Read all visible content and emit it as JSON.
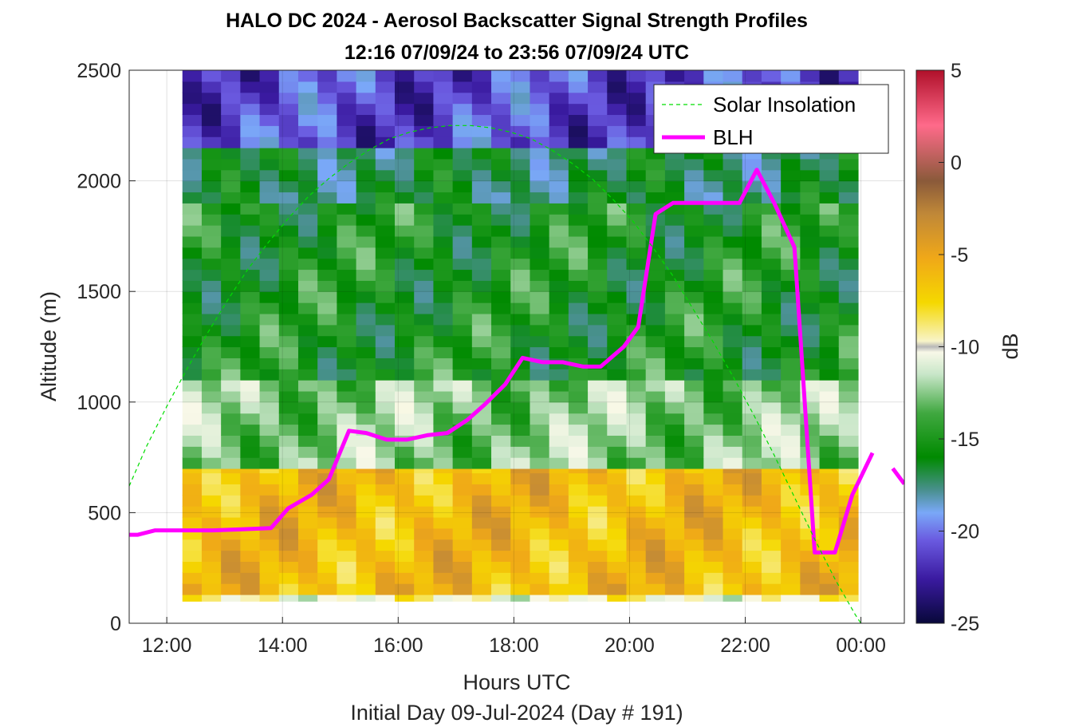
{
  "chart_data": {
    "type": "heatmap",
    "title": "HALO DC 2024 - Aerosol Backscatter Signal Strength Profiles",
    "subtitle": "12:16 07/09/24 to 23:56 07/09/24  UTC",
    "xlabel": "Hours UTC",
    "xlabel2": "Initial Day 09-Jul-2024 (Day # 191)",
    "ylabel": "Altitude (m)",
    "xlim": [
      11.35,
      24.75
    ],
    "ylim": [
      0,
      2500
    ],
    "x_ticks": [
      12,
      14,
      16,
      18,
      20,
      22,
      24
    ],
    "x_tick_labels": [
      "12:00",
      "14:00",
      "16:00",
      "18:00",
      "20:00",
      "22:00",
      "00:00"
    ],
    "y_ticks": [
      0,
      500,
      1000,
      1500,
      2000,
      2500
    ],
    "y_tick_labels": [
      "0",
      "500",
      "1000",
      "1500",
      "2000",
      "2500"
    ],
    "colorbar": {
      "label": "dB",
      "range": [
        -25,
        5
      ],
      "ticks": [
        5,
        0,
        -5,
        -10,
        -15,
        -20,
        -25
      ],
      "tick_labels": [
        "5",
        "0",
        "-5",
        "-10",
        "-15",
        "-20",
        "-25"
      ]
    },
    "grid": true,
    "legend": {
      "placement": "top-right",
      "entries": [
        {
          "name": "Solar Insolation",
          "color": "#00dd00",
          "style": "dashed"
        },
        {
          "name": "BLH",
          "color": "#ff00ff",
          "style": "solid"
        }
      ]
    },
    "heatmap": {
      "x_start": 12.27,
      "x_end": 23.95,
      "columns": 35,
      "value_bands": [
        {
          "y0": 100,
          "y1": 130,
          "value": -10
        },
        {
          "y0": 130,
          "y1": 700,
          "value": -6
        },
        {
          "y0": 700,
          "y1": 1100,
          "value": -13
        },
        {
          "y0": 1100,
          "y1": 1900,
          "value": -15.5
        },
        {
          "y0": 1900,
          "y1": 2150,
          "value": -17
        },
        {
          "y0": 2150,
          "y1": 2500,
          "value": -21.5
        }
      ]
    },
    "series": [
      {
        "name": "BLH",
        "color": "#ff00ff",
        "x": [
          11.35,
          11.5,
          11.8,
          12.3,
          12.8,
          13.3,
          13.8,
          14.1,
          14.5,
          14.8,
          15.15,
          15.45,
          15.8,
          16.15,
          16.5,
          16.85,
          17.2,
          17.5,
          17.85,
          18.15,
          18.5,
          18.85,
          19.2,
          19.5,
          19.9,
          20.15,
          20.45,
          20.75,
          21.0,
          21.3,
          21.55,
          21.9,
          22.2,
          22.5,
          22.85,
          23.2,
          23.55,
          23.85,
          24.2
        ],
        "y": [
          400,
          400,
          420,
          420,
          420,
          425,
          430,
          520,
          580,
          650,
          870,
          860,
          830,
          830,
          850,
          860,
          920,
          990,
          1080,
          1200,
          1180,
          1180,
          1160,
          1160,
          1250,
          1340,
          1850,
          1900,
          1900,
          1900,
          1900,
          1900,
          2050,
          1900,
          1700,
          320,
          320,
          580,
          770
        ]
      },
      {
        "name": "BLH",
        "color": "#ff00ff",
        "x": [
          24.55,
          24.75
        ],
        "y": [
          700,
          630
        ]
      },
      {
        "name": "Solar Insolation",
        "color": "#00dd00",
        "style": "dashed",
        "x": [
          11.35,
          11.65,
          12.0,
          12.35,
          12.7,
          13.05,
          13.4,
          13.75,
          14.1,
          14.45,
          14.8,
          15.15,
          15.5,
          15.85,
          16.2,
          16.55,
          16.9,
          17.25,
          17.6,
          17.95,
          18.3,
          18.65,
          19.0,
          19.35,
          19.7,
          20.05,
          20.4,
          20.75,
          21.1,
          21.45,
          21.8,
          22.15,
          22.5,
          22.85,
          23.2,
          23.55,
          23.9,
          24.25,
          24.6
        ],
        "y": [
          620,
          800,
          980,
          1150,
          1310,
          1460,
          1600,
          1720,
          1830,
          1930,
          2010,
          2080,
          2140,
          2190,
          2220,
          2240,
          2250,
          2250,
          2240,
          2220,
          2190,
          2140,
          2080,
          2010,
          1920,
          1820,
          1700,
          1570,
          1420,
          1270,
          1110,
          940,
          760,
          570,
          380,
          200,
          40,
          -100,
          -5
        ]
      }
    ]
  }
}
